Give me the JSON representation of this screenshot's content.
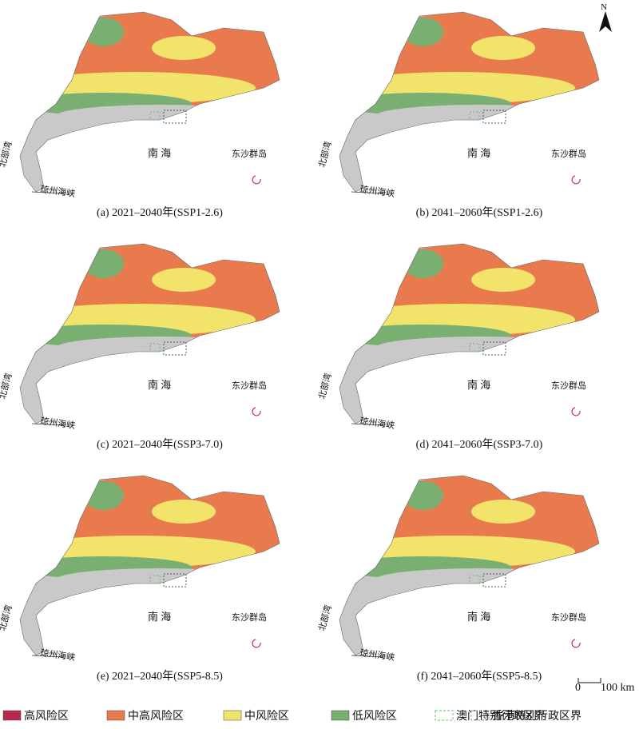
{
  "north": "N",
  "scale": {
    "zero": "0",
    "dist": "100 km"
  },
  "panels": [
    {
      "caption": "(a) 2021–2040年(SSP1-2.6)",
      "sea": "南 海",
      "islands": "东沙群岛",
      "gulf": "北部湾",
      "strait": "琼州海峡"
    },
    {
      "caption": "(b) 2041–2060年(SSP1-2.6)",
      "sea": "南 海",
      "islands": "东沙群岛",
      "gulf": "北部湾",
      "strait": "琼州海峡"
    },
    {
      "caption": "(c) 2021–2040年(SSP3-7.0)",
      "sea": "南 海",
      "islands": "东沙群岛",
      "gulf": "北部湾",
      "strait": "琼州海峡"
    },
    {
      "caption": "(d) 2041–2060年(SSP3-7.0)",
      "sea": "南 海",
      "islands": "东沙群岛",
      "gulf": "北部湾",
      "strait": "琼州海峡"
    },
    {
      "caption": "(e) 2021–2040年(SSP5-8.5)",
      "sea": "南 海",
      "islands": "东沙群岛",
      "gulf": "北部湾",
      "strait": "琼州海峡"
    },
    {
      "caption": "(f) 2041–2060年(SSP5-8.5)",
      "sea": "南 海",
      "islands": "东沙群岛",
      "gulf": "北部湾",
      "strait": "琼州海峡"
    }
  ],
  "legend": [
    {
      "label": "高风险区",
      "color": "#b5294e"
    },
    {
      "label": "中高风险区",
      "color": "#e97a4e"
    },
    {
      "label": "中风险区",
      "color": "#f2e36a"
    },
    {
      "label": "低风险区",
      "color": "#79b072"
    },
    {
      "label": "澳门特别行政区界",
      "color": "#5cc45c"
    },
    {
      "label": "香港特别行政区界",
      "color": "#999999"
    }
  ]
}
